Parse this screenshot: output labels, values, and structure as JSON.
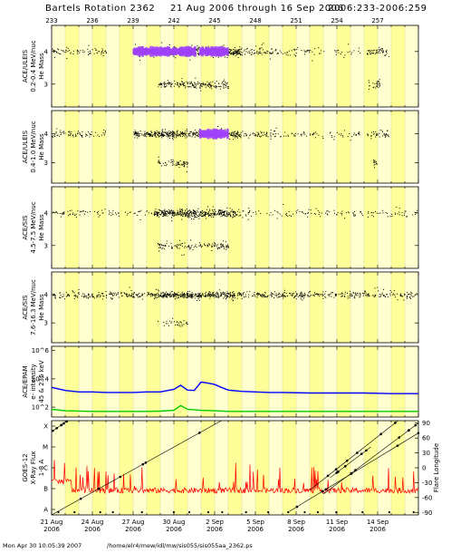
{
  "header": {
    "title": "Bartels Rotation 2362",
    "date_range": "21 Aug 2006 through 16 Sep 2006",
    "doy_range": "2006:233-2006:259"
  },
  "footer": {
    "timestamp": "Mon Apr 30 10:05:39 2007",
    "path": "/home/elr4/mew/idl/mw/sis055/sis055aa_2362.ps"
  },
  "colors": {
    "background_band": "#ffff99",
    "background_band_alt": "#ffffd0",
    "grid_line": "#d8d8a0",
    "points": "#000000",
    "density_high": "#a040ff",
    "electrons_low": "#0000ff",
    "electrons_high": "#00cc00",
    "xray_flux": "#ff0000",
    "flare_lines": "#000000"
  },
  "chart_data": [
    {
      "type": "scatter",
      "panel": "ACE/ULEIS 0.2-0.4 MeV/nuc",
      "ylabel": [
        "ACE/ULEIS",
        "0.2-0.4 MeV/nuc",
        "He Mass"
      ],
      "ylim": [
        2.3,
        4.8
      ],
      "yticks": [
        3,
        4
      ],
      "ytick_labels": [
        "3",
        "4"
      ],
      "x_days": [
        233,
        260
      ],
      "populations": [
        {
          "name": "He4",
          "y": 4.0,
          "days": [
            [
              233,
              237,
              0.25
            ],
            [
              239,
              247,
              1.0
            ],
            [
              247,
              249.5,
              0.35
            ],
            [
              249.5,
              255.7,
              0.15
            ],
            [
              256.2,
              257.8,
              0.45
            ]
          ]
        },
        {
          "name": "He3",
          "y": 3.0,
          "days": [
            [
              240.8,
              246,
              0.5
            ],
            [
              256.3,
              257.3,
              0.4
            ]
          ]
        }
      ],
      "dense_intervals": [
        [
          239,
          243.6
        ],
        [
          243.9,
          246
        ]
      ]
    },
    {
      "type": "scatter",
      "panel": "ACE/ULEIS 0.4-1.0 MeV/nuc",
      "ylabel": [
        "ACE/ULEIS",
        "0.4-1.0 MeV/nuc",
        "He Mass"
      ],
      "ylim": [
        2.3,
        4.8
      ],
      "yticks": [
        3,
        4
      ],
      "ytick_labels": [
        "3",
        "4"
      ],
      "x_days": [
        233,
        260
      ],
      "populations": [
        {
          "name": "He4",
          "y": 4.0,
          "days": [
            [
              233,
              237,
              0.25
            ],
            [
              239,
              247,
              0.8
            ],
            [
              247,
              249.5,
              0.3
            ],
            [
              249.5,
              255.7,
              0.15
            ],
            [
              256.2,
              257.8,
              0.35
            ]
          ]
        },
        {
          "name": "He3",
          "y": 3.0,
          "days": [
            [
              240.8,
              243,
              0.4
            ],
            [
              256.4,
              257,
              0.3
            ]
          ]
        }
      ],
      "dense_intervals": [
        [
          243.9,
          246
        ]
      ]
    },
    {
      "type": "scatter",
      "panel": "ACE/SIS 4.5-7.5 MeV/nuc",
      "ylabel": [
        "ACE/SIS",
        "4.5-7.5 MeV/nuc",
        "He Mass"
      ],
      "ylim": [
        2.3,
        4.8
      ],
      "yticks": [
        3,
        4
      ],
      "ytick_labels": [
        "3",
        "4"
      ],
      "x_days": [
        233,
        260
      ],
      "populations": [
        {
          "name": "He4",
          "y": 4.0,
          "days": [
            [
              233,
              240.5,
              0.15
            ],
            [
              240.5,
              246.5,
              1.0
            ],
            [
              246.5,
              260,
              0.15
            ]
          ]
        },
        {
          "name": "He3",
          "y": 3.0,
          "days": [
            [
              240.8,
              246,
              0.35
            ]
          ]
        }
      ],
      "dense_intervals": []
    },
    {
      "type": "scatter",
      "panel": "ACE/SIS 7.6-16.3 MeV/nuc",
      "ylabel": [
        "ACE/SIS",
        "7.6-16.3 MeV/nuc",
        "He Mass"
      ],
      "ylim": [
        2.3,
        4.8
      ],
      "yticks": [
        3,
        4
      ],
      "ytick_labels": [
        "3",
        "4"
      ],
      "x_days": [
        233,
        260
      ],
      "populations": [
        {
          "name": "He4",
          "y": 4.0,
          "days": [
            [
              233,
              240.5,
              0.35
            ],
            [
              240.5,
              246.5,
              0.9
            ],
            [
              246.5,
              260,
              0.35
            ]
          ]
        },
        {
          "name": "He3",
          "y": 3.0,
          "days": [
            [
              240.8,
              243,
              0.2
            ]
          ]
        }
      ],
      "dense_intervals": []
    },
    {
      "type": "line",
      "panel": "ACE/EPAM electron intensity",
      "ylabel": [
        "ACE/EPAM",
        "e- intensity",
        "45 & 235 keV"
      ],
      "yscale": "log",
      "ylim": [
        20,
        2000000
      ],
      "yticks": [
        100,
        10000,
        1000000
      ],
      "ytick_labels": [
        "10^2",
        "10^4",
        "10^6"
      ],
      "x_days": [
        233,
        260
      ],
      "series": [
        {
          "name": "45 keV",
          "x": [
            233,
            234,
            235,
            236,
            237,
            238,
            239,
            240,
            241,
            242,
            242.5,
            243,
            243.5,
            244,
            244.5,
            245,
            245.5,
            246,
            247,
            248,
            249,
            250,
            252,
            254,
            256,
            258,
            260
          ],
          "y": [
            2500,
            1500,
            1200,
            1200,
            1100,
            1100,
            1100,
            1200,
            1200,
            1800,
            3500,
            1600,
            1500,
            6000,
            5000,
            4000,
            2500,
            1600,
            1300,
            1200,
            1100,
            1100,
            1000,
            1000,
            1000,
            900,
            900
          ]
        },
        {
          "name": "235 keV",
          "x": [
            233,
            234,
            236,
            238,
            240,
            241,
            242,
            242.5,
            243,
            244,
            245,
            246,
            248,
            250,
            254,
            258,
            260
          ],
          "y": [
            70,
            55,
            50,
            50,
            50,
            52,
            60,
            130,
            70,
            60,
            55,
            50,
            50,
            50,
            50,
            50,
            50
          ]
        }
      ]
    },
    {
      "type": "line",
      "panel": "GOES-12 X-Ray Flux and flare longitude",
      "ylabel": [
        "GOES-12",
        "X-Ray Flux",
        "1-8 A"
      ],
      "y2label": "Flare Longitude",
      "left_ticks": [
        "A",
        "B",
        "C",
        "M",
        "X"
      ],
      "right_ticks": [
        90,
        60,
        30,
        0,
        -30,
        -60,
        -90
      ],
      "right_ylim": [
        -95,
        95
      ],
      "x_days": [
        233,
        260
      ],
      "flare_tracks": [
        {
          "x": [
            233,
            245.5
          ],
          "lon": [
            -95,
            95
          ]
        },
        {
          "x": [
            233,
            234.2
          ],
          "lon": [
            73,
            95
          ]
        },
        {
          "x": [
            250.5,
            260
          ],
          "lon": [
            -88,
            70
          ]
        },
        {
          "x": [
            252,
            258.5
          ],
          "lon": [
            -45,
            95
          ]
        },
        {
          "x": [
            253,
            260
          ],
          "lon": [
            -53,
            90
          ]
        },
        {
          "x": [
            253.5,
            256.5
          ],
          "lon": [
            -20,
            42
          ]
        }
      ]
    }
  ],
  "x_axis": {
    "doy_ticks": [
      "233",
      "236",
      "239",
      "242",
      "245",
      "248",
      "251",
      "254",
      "257"
    ],
    "date_ticks": [
      {
        "label": "21 Aug",
        "year": "2006"
      },
      {
        "label": "24 Aug",
        "year": "2006"
      },
      {
        "label": "27 Aug",
        "year": "2006"
      },
      {
        "label": "30 Aug",
        "year": "2006"
      },
      {
        "label": "2 Sep",
        "year": "2006"
      },
      {
        "label": "5 Sep",
        "year": "2006"
      },
      {
        "label": "8 Sep",
        "year": "2006"
      },
      {
        "label": "11 Sep",
        "year": "2006"
      },
      {
        "label": "14 Sep",
        "year": "2006"
      }
    ]
  }
}
